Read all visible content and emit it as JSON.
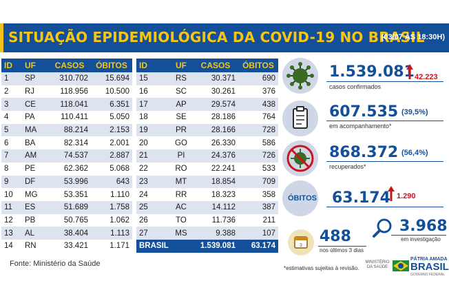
{
  "header": {
    "title": "SITUAÇÃO EPIDEMIOLÓGICA DA COVID-19 NO BRASIL",
    "stamp": "(03/07 ÀS 18:30H)"
  },
  "table_columns": [
    "ID",
    "UF",
    "CASOS",
    "ÓBITOS"
  ],
  "left_rows": [
    {
      "id": "1",
      "uf": "SP",
      "casos": "310.702",
      "obitos": "15.694"
    },
    {
      "id": "2",
      "uf": "RJ",
      "casos": "118.956",
      "obitos": "10.500"
    },
    {
      "id": "3",
      "uf": "CE",
      "casos": "118.041",
      "obitos": "6.351"
    },
    {
      "id": "4",
      "uf": "PA",
      "casos": "110.411",
      "obitos": "5.050"
    },
    {
      "id": "5",
      "uf": "MA",
      "casos": "88.214",
      "obitos": "2.153"
    },
    {
      "id": "6",
      "uf": "BA",
      "casos": "82.314",
      "obitos": "2.001"
    },
    {
      "id": "7",
      "uf": "AM",
      "casos": "74.537",
      "obitos": "2.887"
    },
    {
      "id": "8",
      "uf": "PE",
      "casos": "62.362",
      "obitos": "5.068"
    },
    {
      "id": "9",
      "uf": "DF",
      "casos": "53.996",
      "obitos": "643"
    },
    {
      "id": "10",
      "uf": "MG",
      "casos": "53.351",
      "obitos": "1.110"
    },
    {
      "id": "11",
      "uf": "ES",
      "casos": "51.689",
      "obitos": "1.758"
    },
    {
      "id": "12",
      "uf": "PB",
      "casos": "50.765",
      "obitos": "1.062"
    },
    {
      "id": "13",
      "uf": "AL",
      "casos": "38.404",
      "obitos": "1.113"
    },
    {
      "id": "14",
      "uf": "RN",
      "casos": "33.421",
      "obitos": "1.171"
    }
  ],
  "right_rows": [
    {
      "id": "15",
      "uf": "RS",
      "casos": "30.371",
      "obitos": "690"
    },
    {
      "id": "16",
      "uf": "SC",
      "casos": "30.261",
      "obitos": "376"
    },
    {
      "id": "17",
      "uf": "AP",
      "casos": "29.574",
      "obitos": "438"
    },
    {
      "id": "18",
      "uf": "SE",
      "casos": "28.186",
      "obitos": "764"
    },
    {
      "id": "19",
      "uf": "PR",
      "casos": "28.166",
      "obitos": "728"
    },
    {
      "id": "20",
      "uf": "GO",
      "casos": "26.330",
      "obitos": "586"
    },
    {
      "id": "21",
      "uf": "PI",
      "casos": "24.376",
      "obitos": "726"
    },
    {
      "id": "22",
      "uf": "RO",
      "casos": "22.241",
      "obitos": "533"
    },
    {
      "id": "23",
      "uf": "MT",
      "casos": "18.854",
      "obitos": "709"
    },
    {
      "id": "24",
      "uf": "RR",
      "casos": "18.323",
      "obitos": "358"
    },
    {
      "id": "25",
      "uf": "AC",
      "casos": "14.112",
      "obitos": "387"
    },
    {
      "id": "26",
      "uf": "TO",
      "casos": "11.736",
      "obitos": "211"
    },
    {
      "id": "27",
      "uf": "MS",
      "casos": "9.388",
      "obitos": "107"
    }
  ],
  "total": {
    "label": "BRASIL",
    "casos": "1.539.081",
    "obitos": "63.174"
  },
  "source": "Fonte: Ministério da Saúde",
  "stats": {
    "confirmed": {
      "value": "1.539.081",
      "delta": "42.223",
      "label": "casos confirmados",
      "icon": "virus-icon"
    },
    "monitoring": {
      "value": "607.535",
      "pct": "(39,5%)",
      "label": "em acompanhamento*",
      "icon": "clipboard-icon"
    },
    "recovered": {
      "value": "868.372",
      "pct": "(56,4%)",
      "label": "recuperados*",
      "icon": "no-virus-icon"
    },
    "deaths": {
      "badge": "ÓBITOS",
      "value": "63.174",
      "delta": "1.290"
    },
    "last3days": {
      "value": "488",
      "label": "nos últimos 3 dias",
      "icon": "calendar-icon"
    },
    "investigation": {
      "value": "3.968",
      "label": "em investigação",
      "icon": "magnifier-icon"
    }
  },
  "note": "*estimativas sujeitas à revisão.",
  "ministry": "MINISTÉRIO DA SAÚDE",
  "gov": {
    "line1": "PÁTRIA AMADA",
    "line2": "BRASIL",
    "line3": "GOVERNO FEDERAL"
  },
  "colors": {
    "navy": "#14509a",
    "yellow": "#f6c614",
    "red": "#c8161d",
    "stripe": "#dde4f0"
  }
}
